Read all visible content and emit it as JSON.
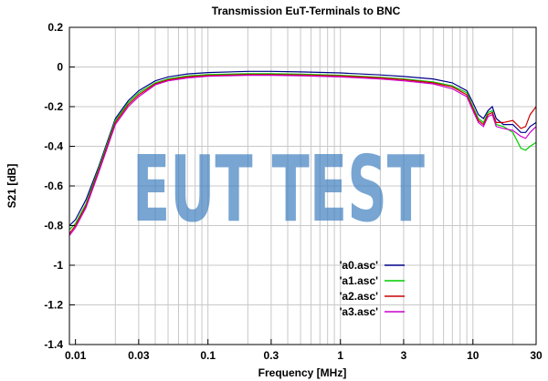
{
  "chart_data": {
    "type": "line",
    "title": "Transmission EuT-Terminals to BNC",
    "xlabel": "Frequency [MHz]",
    "ylabel": "S21 [dB]",
    "x_scale": "log",
    "xlim": [
      0.009,
      30
    ],
    "ylim": [
      -1.4,
      0.2
    ],
    "grid": true,
    "legend_position": "center-right",
    "watermark": "EUT TEST",
    "watermark_color": "#3f7fbf",
    "x_ticks": [
      {
        "value": 0.01,
        "label": "0.01"
      },
      {
        "value": 0.03,
        "label": "0.03"
      },
      {
        "value": 0.1,
        "label": "0.1"
      },
      {
        "value": 0.3,
        "label": "0.3"
      },
      {
        "value": 1,
        "label": "1"
      },
      {
        "value": 3,
        "label": "3"
      },
      {
        "value": 10,
        "label": "10"
      },
      {
        "value": 30,
        "label": "30"
      }
    ],
    "y_ticks": [
      {
        "value": 0.2,
        "label": "0.2"
      },
      {
        "value": 0,
        "label": "0"
      },
      {
        "value": -0.2,
        "label": "-0.2"
      },
      {
        "value": -0.4,
        "label": "-0.4"
      },
      {
        "value": -0.6,
        "label": "-0.6"
      },
      {
        "value": -0.8,
        "label": "-0.8"
      },
      {
        "value": -1,
        "label": "-1"
      },
      {
        "value": -1.2,
        "label": "-1.2"
      },
      {
        "value": -1.4,
        "label": "-1.4"
      }
    ],
    "x_grid": [
      0.02,
      0.03,
      0.04,
      0.05,
      0.06,
      0.07,
      0.08,
      0.09,
      0.1,
      0.2,
      0.3,
      0.4,
      0.5,
      0.6,
      0.7,
      0.8,
      0.9,
      1,
      2,
      3,
      4,
      5,
      6,
      7,
      8,
      9,
      10,
      20
    ],
    "series": [
      {
        "name": "'a0.asc'",
        "color": "#00008b",
        "points": [
          [
            0.009,
            -0.8
          ],
          [
            0.01,
            -0.77
          ],
          [
            0.012,
            -0.67
          ],
          [
            0.015,
            -0.5
          ],
          [
            0.02,
            -0.26
          ],
          [
            0.025,
            -0.17
          ],
          [
            0.03,
            -0.12
          ],
          [
            0.04,
            -0.07
          ],
          [
            0.05,
            -0.05
          ],
          [
            0.07,
            -0.035
          ],
          [
            0.1,
            -0.028
          ],
          [
            0.2,
            -0.022
          ],
          [
            0.3,
            -0.022
          ],
          [
            0.5,
            -0.025
          ],
          [
            1,
            -0.03
          ],
          [
            2,
            -0.04
          ],
          [
            3,
            -0.048
          ],
          [
            5,
            -0.06
          ],
          [
            7,
            -0.08
          ],
          [
            9,
            -0.12
          ],
          [
            10,
            -0.18
          ],
          [
            11,
            -0.24
          ],
          [
            12,
            -0.26
          ],
          [
            13,
            -0.22
          ],
          [
            14,
            -0.2
          ],
          [
            15,
            -0.26
          ],
          [
            17,
            -0.29
          ],
          [
            20,
            -0.29
          ],
          [
            23,
            -0.33
          ],
          [
            25,
            -0.33
          ],
          [
            27,
            -0.3
          ],
          [
            30,
            -0.28
          ]
        ]
      },
      {
        "name": "'a1.asc'",
        "color": "#00cc00",
        "points": [
          [
            0.009,
            -0.82
          ],
          [
            0.01,
            -0.79
          ],
          [
            0.012,
            -0.69
          ],
          [
            0.015,
            -0.51
          ],
          [
            0.02,
            -0.27
          ],
          [
            0.025,
            -0.18
          ],
          [
            0.03,
            -0.13
          ],
          [
            0.04,
            -0.08
          ],
          [
            0.05,
            -0.06
          ],
          [
            0.07,
            -0.045
          ],
          [
            0.1,
            -0.038
          ],
          [
            0.2,
            -0.034
          ],
          [
            0.3,
            -0.034
          ],
          [
            0.5,
            -0.036
          ],
          [
            1,
            -0.042
          ],
          [
            2,
            -0.052
          ],
          [
            3,
            -0.06
          ],
          [
            5,
            -0.075
          ],
          [
            7,
            -0.095
          ],
          [
            9,
            -0.13
          ],
          [
            10,
            -0.2
          ],
          [
            11,
            -0.26
          ],
          [
            12,
            -0.28
          ],
          [
            13,
            -0.23
          ],
          [
            14,
            -0.22
          ],
          [
            15,
            -0.29
          ],
          [
            17,
            -0.3
          ],
          [
            20,
            -0.33
          ],
          [
            23,
            -0.41
          ],
          [
            25,
            -0.42
          ],
          [
            27,
            -0.4
          ],
          [
            30,
            -0.38
          ]
        ]
      },
      {
        "name": "'a2.asc'",
        "color": "#cc0000",
        "points": [
          [
            0.009,
            -0.84
          ],
          [
            0.01,
            -0.8
          ],
          [
            0.012,
            -0.7
          ],
          [
            0.015,
            -0.52
          ],
          [
            0.02,
            -0.28
          ],
          [
            0.025,
            -0.19
          ],
          [
            0.03,
            -0.14
          ],
          [
            0.04,
            -0.085
          ],
          [
            0.05,
            -0.065
          ],
          [
            0.07,
            -0.05
          ],
          [
            0.1,
            -0.043
          ],
          [
            0.2,
            -0.038
          ],
          [
            0.3,
            -0.038
          ],
          [
            0.5,
            -0.04
          ],
          [
            1,
            -0.045
          ],
          [
            2,
            -0.055
          ],
          [
            3,
            -0.064
          ],
          [
            5,
            -0.08
          ],
          [
            7,
            -0.1
          ],
          [
            9,
            -0.14
          ],
          [
            10,
            -0.21
          ],
          [
            11,
            -0.27
          ],
          [
            12,
            -0.29
          ],
          [
            13,
            -0.24
          ],
          [
            14,
            -0.23
          ],
          [
            15,
            -0.28
          ],
          [
            17,
            -0.28
          ],
          [
            20,
            -0.27
          ],
          [
            23,
            -0.31
          ],
          [
            25,
            -0.3
          ],
          [
            27,
            -0.24
          ],
          [
            30,
            -0.2
          ]
        ]
      },
      {
        "name": "'a3.asc'",
        "color": "#cc00cc",
        "points": [
          [
            0.009,
            -0.85
          ],
          [
            0.01,
            -0.81
          ],
          [
            0.012,
            -0.71
          ],
          [
            0.015,
            -0.53
          ],
          [
            0.02,
            -0.29
          ],
          [
            0.025,
            -0.2
          ],
          [
            0.03,
            -0.15
          ],
          [
            0.04,
            -0.09
          ],
          [
            0.05,
            -0.07
          ],
          [
            0.07,
            -0.055
          ],
          [
            0.1,
            -0.047
          ],
          [
            0.2,
            -0.042
          ],
          [
            0.3,
            -0.042
          ],
          [
            0.5,
            -0.044
          ],
          [
            1,
            -0.05
          ],
          [
            2,
            -0.06
          ],
          [
            3,
            -0.07
          ],
          [
            5,
            -0.085
          ],
          [
            7,
            -0.11
          ],
          [
            9,
            -0.15
          ],
          [
            10,
            -0.22
          ],
          [
            11,
            -0.28
          ],
          [
            12,
            -0.3
          ],
          [
            13,
            -0.25
          ],
          [
            14,
            -0.24
          ],
          [
            15,
            -0.3
          ],
          [
            17,
            -0.31
          ],
          [
            20,
            -0.32
          ],
          [
            23,
            -0.35
          ],
          [
            25,
            -0.36
          ],
          [
            27,
            -0.33
          ],
          [
            30,
            -0.3
          ]
        ]
      }
    ]
  }
}
